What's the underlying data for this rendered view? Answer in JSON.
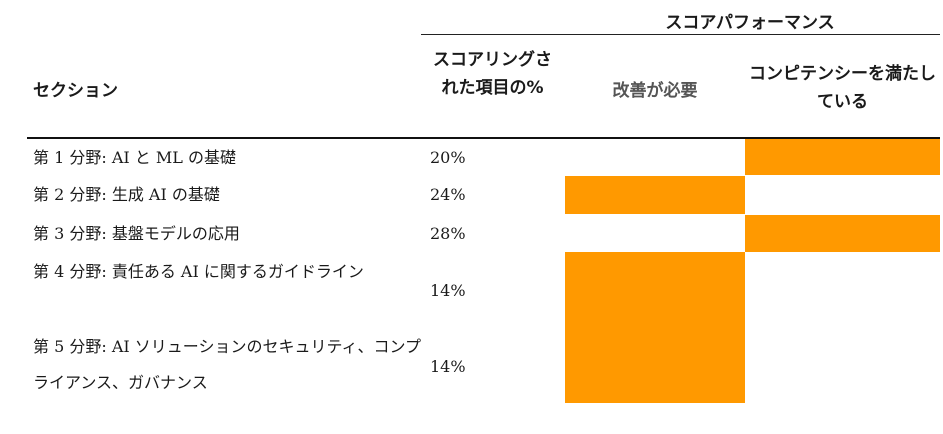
{
  "header": {
    "group_title": "スコアパフォーマンス",
    "section_col": "セクション",
    "pct_col": "スコアリングされた項目の%",
    "needs_improvement_col": "改善が必要",
    "competent_col": "コンピテンシーを満たしている"
  },
  "rows": [
    {
      "section": "第 1 分野: AI と ML の基礎",
      "percent": "20%",
      "rating": "competent"
    },
    {
      "section": "第 2 分野: 生成 AI の基礎",
      "percent": "24%",
      "rating": "needs_improvement"
    },
    {
      "section": "第 3 分野: 基盤モデルの応用",
      "percent": "28%",
      "rating": "competent"
    },
    {
      "section": "第 4 分野: 責任ある AI に関するガイドライン",
      "percent": "14%",
      "rating": "needs_improvement"
    },
    {
      "section": "第 5 分野: AI ソリューションのセキュリティ、コンプライアンス、ガバナンス",
      "percent": "14%",
      "rating": "needs_improvement"
    }
  ],
  "colors": {
    "bar": "#ff9900"
  }
}
